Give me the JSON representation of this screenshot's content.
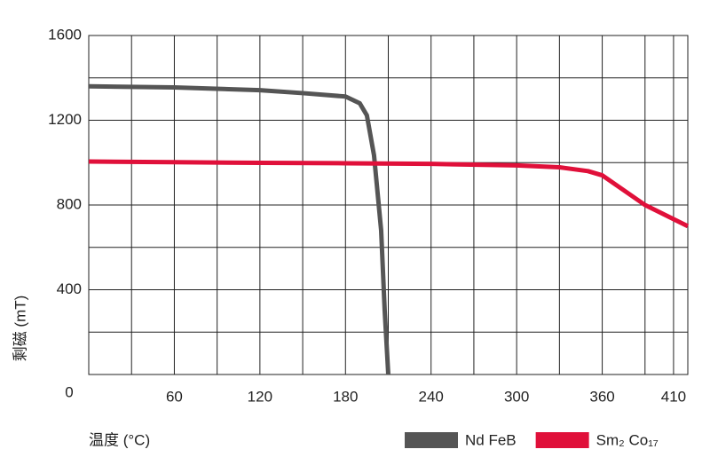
{
  "chart_data": {
    "type": "line",
    "x_label": "温度 (°C)",
    "y_label": "剩磁 (mT)",
    "xlim": [
      0,
      420
    ],
    "ylim": [
      0,
      1600
    ],
    "xticks": [
      0,
      60,
      120,
      180,
      240,
      300,
      360,
      410
    ],
    "yticks": [
      0,
      400,
      800,
      1200,
      1600
    ],
    "minor_xticks": [
      30,
      90,
      150,
      210,
      270,
      330,
      390
    ],
    "minor_yticks": [
      200,
      600,
      1000,
      1400
    ],
    "grid": true,
    "legend": "bottom-right",
    "series": [
      {
        "name": "Nd FeB",
        "color": "#555555",
        "x": [
          0,
          60,
          120,
          150,
          180,
          190,
          195,
          200,
          205,
          207.5,
          209,
          210
        ],
        "values": [
          1360,
          1355,
          1342,
          1328,
          1312,
          1280,
          1223,
          1035,
          680,
          300,
          120,
          0
        ]
      },
      {
        "name": "Sm₂ Co₁₇",
        "color": "#e0103a",
        "x": [
          0,
          60,
          120,
          180,
          240,
          300,
          330,
          350,
          360,
          390,
          420
        ],
        "values": [
          1005,
          1002,
          999,
          997,
          994,
          987,
          978,
          960,
          940,
          800,
          700
        ]
      }
    ]
  }
}
